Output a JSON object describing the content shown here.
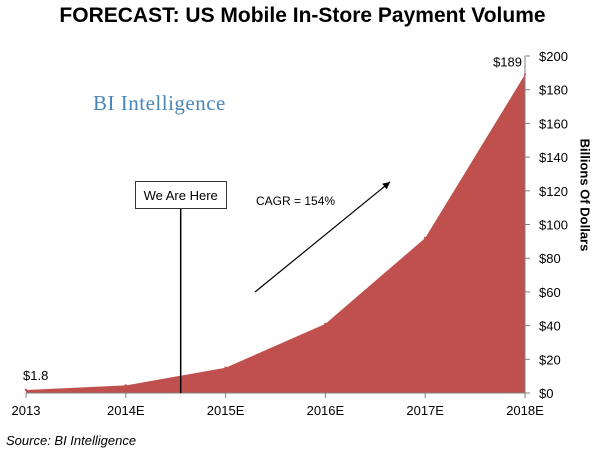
{
  "chart_data": {
    "type": "area",
    "title": "FORECAST: US Mobile In-Store Payment Volume",
    "categories": [
      "2013",
      "2014E",
      "2015E",
      "2016E",
      "2017E",
      "2018E"
    ],
    "values": [
      1.8,
      4.5,
      15,
      41,
      92,
      189
    ],
    "ylabel": "Billions Of Dollars",
    "ylim": [
      0,
      200
    ],
    "yticks": [
      "$0",
      "$20",
      "$40",
      "$60",
      "$80",
      "$100",
      "$120",
      "$140",
      "$160",
      "$180",
      "$200"
    ],
    "y_axis_side": "right",
    "grid": false,
    "color": "#c0504d",
    "data_labels": {
      "first": "$1.8",
      "last": "$189"
    },
    "annotations": {
      "marker_label": "We Are Here",
      "marker_x": 2014.55,
      "growth_label": "CAGR = 154%"
    },
    "source": "Source: BI Intelligence",
    "watermark": "BI Intelligence"
  }
}
